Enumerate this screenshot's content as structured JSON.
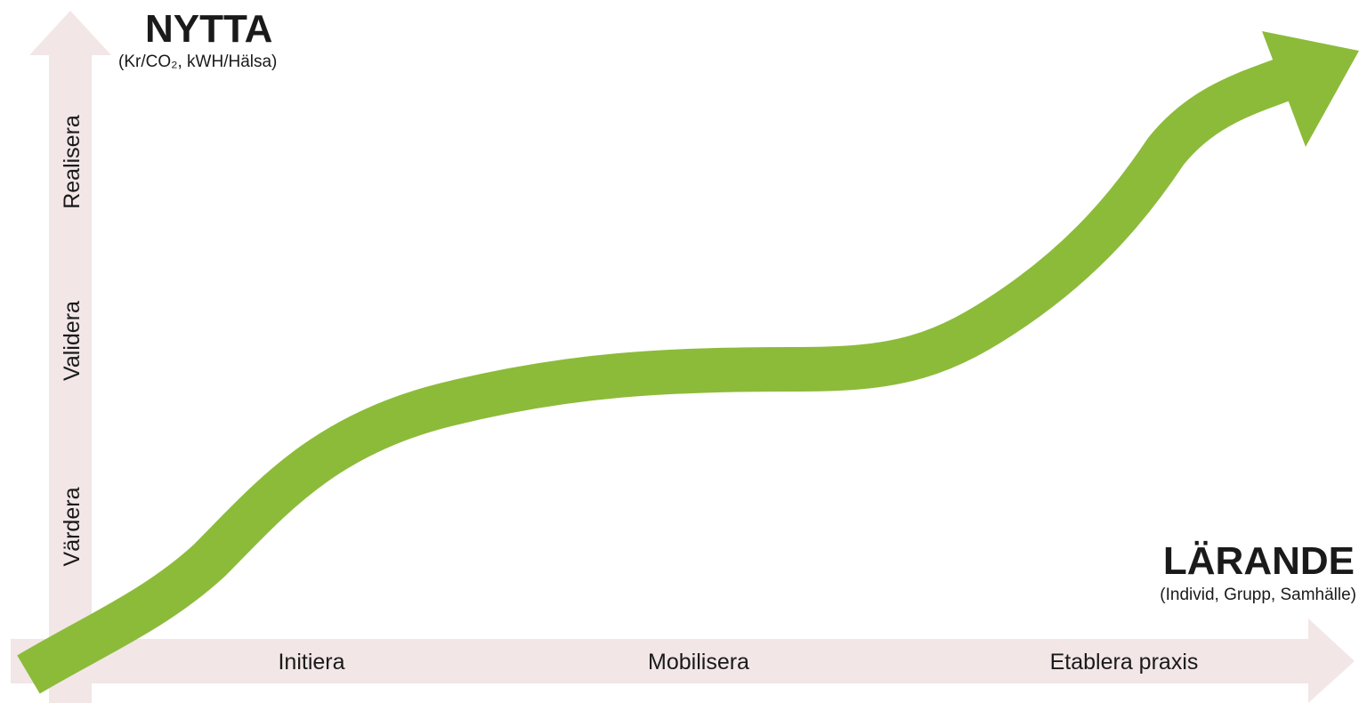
{
  "y_axis": {
    "title": "NYTTA",
    "subtitle": "(Kr/CO₂, kWH/Hälsa)",
    "stages": [
      "Värdera",
      "Validera",
      "Realisera"
    ]
  },
  "x_axis": {
    "title": "LÄRANDE",
    "subtitle": "(Individ, Grupp, Samhälle)",
    "stages": [
      "Initiera",
      "Mobilisera",
      "Etablera praxis"
    ]
  },
  "colors": {
    "axis_fill": "#f2e6e6",
    "curve_fill": "#8cbb3a",
    "text": "#1a1a1a"
  }
}
